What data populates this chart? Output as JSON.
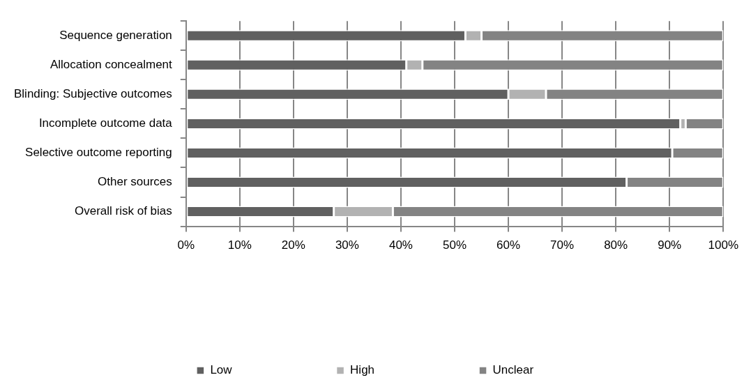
{
  "chart_data": {
    "type": "bar",
    "orientation": "horizontal",
    "stacked": true,
    "categories": [
      "Sequence generation",
      "Allocation concealment",
      "Blinding: Subjective outcomes",
      "Incomplete outcome data",
      "Selective outcome reporting",
      "Other sources",
      "Overall risk of bias"
    ],
    "series": [
      {
        "name": "Low",
        "color": "#606060",
        "values": [
          52,
          41,
          60,
          92,
          90.5,
          82,
          27.5
        ]
      },
      {
        "name": "High",
        "color": "#b2b2b2",
        "values": [
          3,
          3,
          7,
          1,
          0,
          0,
          11
        ]
      },
      {
        "name": "Unclear",
        "color": "#838383",
        "values": [
          45,
          56,
          33,
          7,
          9.5,
          18,
          61.5
        ]
      }
    ],
    "xlim": [
      0,
      100
    ],
    "xticks": [
      {
        "value": 0,
        "label": "0%"
      },
      {
        "value": 10,
        "label": "10%"
      },
      {
        "value": 20,
        "label": "20%"
      },
      {
        "value": 30,
        "label": "30%"
      },
      {
        "value": 40,
        "label": "40%"
      },
      {
        "value": 50,
        "label": "50%"
      },
      {
        "value": 60,
        "label": "60%"
      },
      {
        "value": 70,
        "label": "70%"
      },
      {
        "value": 80,
        "label": "80%"
      },
      {
        "value": 90,
        "label": "90%"
      },
      {
        "value": 100,
        "label": "100%"
      }
    ],
    "grid": "x",
    "legend": "bottom"
  }
}
